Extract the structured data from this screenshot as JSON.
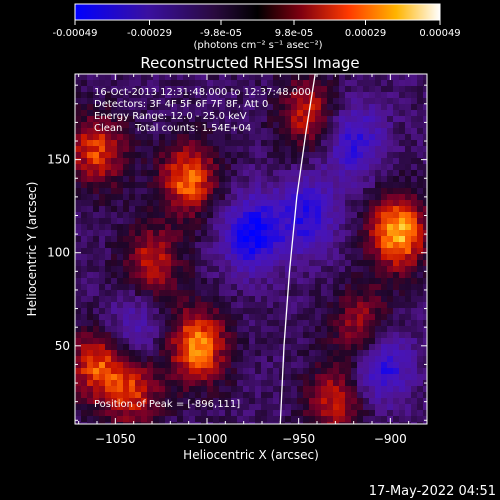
{
  "colorbar": {
    "ticks": [
      "-0.00049",
      "-0.00029",
      "-9.8e-05",
      "9.8e-05",
      "0.00029",
      "0.00049"
    ],
    "tick_values": [
      -0.00049,
      -0.00029,
      -9.8e-05,
      9.8e-05,
      0.00029,
      0.00049
    ],
    "range": [
      -0.00049,
      0.00049
    ],
    "units": "(photons cm⁻² s⁻¹ asec⁻²)"
  },
  "chart_data": {
    "type": "heatmap",
    "title": "Reconstructed RHESSI Image",
    "xlabel": "Heliocentric X (arcsec)",
    "ylabel": "Heliocentric Y (arcsec)",
    "xlim": [
      -1072,
      -880
    ],
    "ylim": [
      8,
      196
    ],
    "xticks": [
      -1050,
      -1000,
      -950,
      -900
    ],
    "xtick_labels": [
      "−1050",
      "−1000",
      "−950",
      "−900"
    ],
    "yticks": [
      50,
      100,
      150
    ],
    "ytick_labels": [
      "50",
      "100",
      "150"
    ],
    "peak": [
      -896,
      111
    ],
    "colormap": [
      "#0000ff",
      "#1a007a",
      "#2b0e55",
      "#000000",
      "#5a0030",
      "#c01000",
      "#ff5a00",
      "#ffb000",
      "#ffff80",
      "#ffffff"
    ],
    "limb_curve": [
      [
        -960,
        8
      ],
      [
        -958,
        50
      ],
      [
        -955,
        90
      ],
      [
        -951,
        130
      ],
      [
        -946,
        165
      ],
      [
        -941,
        196
      ]
    ],
    "annotations": [
      "16-Oct-2013 12:31:48.000 to 12:37:48.000",
      "Detectors: 3F 4F 5F 6F 7F 8F, Att 0",
      "Energy Range: 12.0 - 25.0 keV",
      "Clean    Total counts: 1.54E+04"
    ],
    "peak_label": "Position of Peak = [-896,111]",
    "bright_regions": [
      {
        "x": -1010,
        "y": 140,
        "level": 0.0004
      },
      {
        "x": -1005,
        "y": 50,
        "level": 0.00045
      },
      {
        "x": -1060,
        "y": 155,
        "level": 0.00035
      },
      {
        "x": -1030,
        "y": 95,
        "level": 0.0003
      },
      {
        "x": -896,
        "y": 111,
        "level": 0.00049
      },
      {
        "x": -915,
        "y": 60,
        "level": 0.0003
      },
      {
        "x": -945,
        "y": 175,
        "level": 0.0003
      },
      {
        "x": -1060,
        "y": 40,
        "level": 0.00035
      },
      {
        "x": -1040,
        "y": 25,
        "level": 0.0003
      },
      {
        "x": -930,
        "y": 20,
        "level": 0.0003
      }
    ],
    "dark_regions": [
      {
        "x": -975,
        "y": 110,
        "level": -0.0004
      },
      {
        "x": -945,
        "y": 120,
        "level": -0.0003
      },
      {
        "x": -920,
        "y": 160,
        "level": -0.00029
      },
      {
        "x": -905,
        "y": 40,
        "level": -0.00035
      },
      {
        "x": -1040,
        "y": 60,
        "level": -0.0002
      }
    ]
  },
  "footer": {
    "date": "17-May-2022 04:51"
  }
}
